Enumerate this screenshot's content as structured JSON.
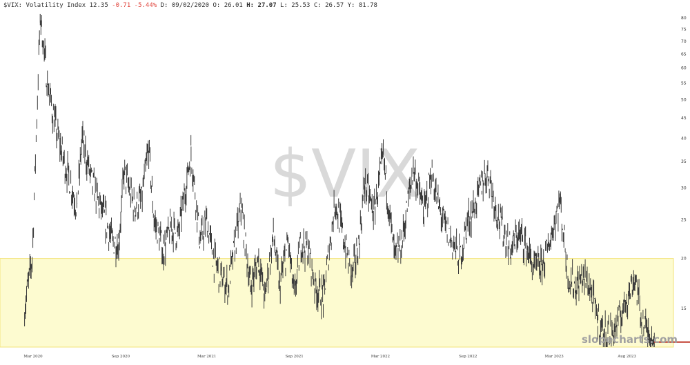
{
  "header": {
    "symbol_name": "$VIX: Volatility Index",
    "last": "12.35",
    "change": "-0.71",
    "change_pct": "-5.44%",
    "date_label": "D: 09/02/2020",
    "open_label": "O: 26.01",
    "high_label": "H:",
    "high_value": "27.07",
    "low_label": "L: 25.53",
    "close_label": "C: 26.57",
    "y_label": "Y: 81.78"
  },
  "watermark": "$VIX",
  "brand": "slopecharts.com",
  "colors": {
    "candle": "#3c3c3c",
    "zone_fill": "#fdfbd0",
    "zone_line": "#f2e37a",
    "current_price_line": "#c0392b",
    "negative_change": "#e0443c"
  },
  "chart_data": {
    "type": "line",
    "title": "$VIX: Volatility Index",
    "scale": "log",
    "ylim": [
      12,
      82
    ],
    "y_ticks": [
      15,
      20,
      25,
      30,
      35,
      40,
      45,
      50,
      55,
      60,
      65,
      70,
      75,
      80
    ],
    "x_ticks": [
      "Mar 2020",
      "Sep 2020",
      "Mar 2021",
      "Sep 2021",
      "Mar 2022",
      "Sep 2022",
      "Mar 2023",
      "Aug 2023"
    ],
    "xlim": [
      "2020-02-01",
      "2023-09-30"
    ],
    "highlight_zone": {
      "from": 12,
      "to": 20
    },
    "current_price": 12.35,
    "series": [
      {
        "x": [
          "2020-02-12",
          "2020-02-28",
          "2020-03-16",
          "2020-03-31",
          "2020-04-15",
          "2020-04-30",
          "2020-05-15",
          "2020-06-01",
          "2020-06-12",
          "2020-06-30",
          "2020-07-15",
          "2020-07-31",
          "2020-08-15",
          "2020-08-28",
          "2020-09-08",
          "2020-09-30",
          "2020-10-15",
          "2020-10-30",
          "2020-11-10",
          "2020-11-30",
          "2020-12-15",
          "2020-12-31",
          "2021-01-27",
          "2021-02-15",
          "2021-03-01",
          "2021-03-15",
          "2021-04-01",
          "2021-04-15",
          "2021-05-12",
          "2021-06-01",
          "2021-06-18",
          "2021-07-01",
          "2021-07-19",
          "2021-08-01",
          "2021-08-19",
          "2021-09-01",
          "2021-09-15",
          "2021-10-01",
          "2021-10-15",
          "2021-11-01",
          "2021-11-26",
          "2021-12-15",
          "2021-12-31",
          "2022-01-15",
          "2022-01-27",
          "2022-02-15",
          "2022-03-07",
          "2022-03-31",
          "2022-04-15",
          "2022-05-09",
          "2022-06-01",
          "2022-06-16",
          "2022-07-01",
          "2022-07-15",
          "2022-08-15",
          "2022-09-01",
          "2022-09-15",
          "2022-09-30",
          "2022-10-13",
          "2022-11-01",
          "2022-11-30",
          "2022-12-15",
          "2022-12-31",
          "2023-01-15",
          "2023-02-01",
          "2023-02-15",
          "2023-03-13",
          "2023-03-31",
          "2023-04-15",
          "2023-05-01",
          "2023-05-15",
          "2023-06-01",
          "2023-06-15",
          "2023-07-01",
          "2023-07-15",
          "2023-08-01",
          "2023-08-18",
          "2023-09-01",
          "2023-09-15",
          "2023-09-29"
        ],
        "values": [
          15,
          20,
          82,
          55,
          44,
          37,
          32,
          27,
          40,
          32,
          28,
          25,
          22,
          22,
          33,
          27,
          28,
          38,
          25,
          21,
          24,
          23,
          37,
          22,
          25,
          20,
          18,
          17,
          27,
          17,
          20,
          16,
          23,
          17,
          22,
          16,
          22,
          21,
          17,
          16,
          28,
          22,
          18,
          22,
          31,
          26,
          36,
          20,
          22,
          34,
          26,
          33,
          27,
          24,
          20,
          25,
          27,
          31,
          33,
          26,
          21,
          23,
          22,
          19,
          19,
          21,
          28,
          18,
          17,
          18,
          17,
          14,
          13,
          13,
          14,
          16,
          18,
          14,
          13,
          12.35
        ]
      }
    ]
  }
}
